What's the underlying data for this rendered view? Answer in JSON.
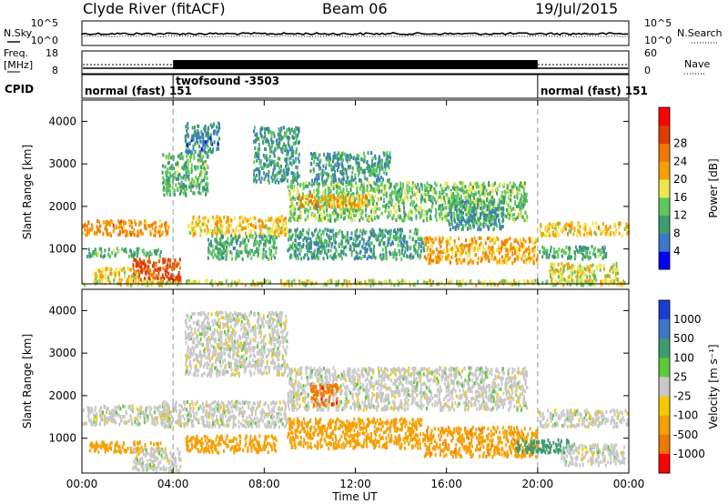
{
  "header": {
    "station": "Clyde River (fitACF)",
    "beam": "Beam 06",
    "date": "19/Jul/2015"
  },
  "top_panels": {
    "nsky_label": "N.Sky",
    "nsky_ticks": [
      "10^5",
      "10^0"
    ],
    "nsearch_label": "N.Search",
    "nsearch_ticks": [
      "10^5",
      "10^0"
    ],
    "freq_label_1": "Freq.",
    "freq_label_2": "[MHz]",
    "freq_ticks": [
      "18",
      "8"
    ],
    "nave_label": "Nave",
    "nave_ticks": [
      "60",
      "0"
    ],
    "cpid_label": "CPID"
  },
  "cpid_segments": [
    {
      "text": "normal (fast) 151",
      "start_h": 0,
      "end_h": 4
    },
    {
      "text": "twofsound -3503",
      "start_h": 4,
      "end_h": 20
    },
    {
      "text": "normal (fast) 151",
      "start_h": 20,
      "end_h": 24
    }
  ],
  "chart_data": [
    {
      "type": "heatmap",
      "panel": "power",
      "xlabel": "Time UT",
      "ylabel": "Slant Range [km]",
      "x_range_h": [
        0,
        24
      ],
      "xtick_labels": [
        "00:00",
        "04:00",
        "08:00",
        "12:00",
        "16:00",
        "20:00",
        "00:00"
      ],
      "ylim": [
        180,
        4500
      ],
      "yticks": [
        1000,
        2000,
        3000,
        4000
      ],
      "colorbar_label": "Power [dB]",
      "colorbar_ticks": [
        "4",
        "8",
        "12",
        "16",
        "20",
        "24",
        "28"
      ],
      "colorbar_colors": [
        "#0000ff",
        "#3c78c8",
        "#3e9b6e",
        "#5ec85e",
        "#f0e650",
        "#f5a000",
        "#f07800",
        "#e03c00",
        "#ff0000"
      ],
      "echo_regions": [
        {
          "t0": 0.0,
          "t1": 3.8,
          "r0": 1350,
          "r1": 1700,
          "level": 24
        },
        {
          "t0": 0.2,
          "t1": 3.5,
          "r0": 850,
          "r1": 1050,
          "level": 12
        },
        {
          "t0": 2.2,
          "t1": 4.3,
          "r0": 250,
          "r1": 800,
          "level": 30
        },
        {
          "t0": 0.5,
          "t1": 2.5,
          "r0": 300,
          "r1": 600,
          "level": 20
        },
        {
          "t0": 3.5,
          "t1": 5.5,
          "r0": 2300,
          "r1": 3300,
          "level": 12
        },
        {
          "t0": 4.5,
          "t1": 6.0,
          "r0": 3300,
          "r1": 4000,
          "level": 8
        },
        {
          "t0": 4.6,
          "t1": 9.0,
          "r0": 1350,
          "r1": 1800,
          "level": 20
        },
        {
          "t0": 5.5,
          "t1": 8.5,
          "r0": 800,
          "r1": 1350,
          "level": 12
        },
        {
          "t0": 7.5,
          "t1": 9.5,
          "r0": 2600,
          "r1": 3900,
          "level": 10
        },
        {
          "t0": 9.0,
          "t1": 19.5,
          "r0": 1700,
          "r1": 2600,
          "level": 14
        },
        {
          "t0": 9.5,
          "t1": 12.5,
          "r0": 2000,
          "r1": 2300,
          "level": 22
        },
        {
          "t0": 10.0,
          "t1": 13.5,
          "r0": 2600,
          "r1": 3300,
          "level": 10
        },
        {
          "t0": 9.0,
          "t1": 15.0,
          "r0": 800,
          "r1": 1500,
          "level": 10
        },
        {
          "t0": 15.0,
          "t1": 20.0,
          "r0": 700,
          "r1": 1300,
          "level": 22
        },
        {
          "t0": 16.0,
          "t1": 18.5,
          "r0": 1500,
          "r1": 2200,
          "level": 10
        },
        {
          "t0": 20.0,
          "t1": 24.0,
          "r0": 1350,
          "r1": 1650,
          "level": 20
        },
        {
          "t0": 20.0,
          "t1": 23.0,
          "r0": 800,
          "r1": 1100,
          "level": 12
        },
        {
          "t0": 20.5,
          "t1": 23.5,
          "r0": 250,
          "r1": 700,
          "level": 18
        },
        {
          "t0": 0.0,
          "t1": 24.0,
          "r0": 180,
          "r1": 300,
          "level": 18
        }
      ]
    },
    {
      "type": "heatmap",
      "panel": "velocity",
      "xlabel": "Time UT",
      "ylabel": "Slant Range [km]",
      "x_range_h": [
        0,
        24
      ],
      "xtick_labels": [
        "00:00",
        "04:00",
        "08:00",
        "12:00",
        "16:00",
        "20:00",
        "00:00"
      ],
      "ylim": [
        180,
        4500
      ],
      "yticks": [
        1000,
        2000,
        3000,
        4000
      ],
      "colorbar_label": "Velocity [m s⁻¹]",
      "colorbar_ticks": [
        "1000",
        "500",
        "100",
        "25",
        "-25",
        "-100",
        "-500",
        "-1000"
      ],
      "colorbar_colors": [
        "#1a3fd0",
        "#3c78c8",
        "#3e9b6e",
        "#5ec83c",
        "#c8c8c8",
        "#f5c800",
        "#f5a000",
        "#f07800",
        "#ff0000"
      ],
      "echo_regions": [
        {
          "t0": 0.0,
          "t1": 3.8,
          "r0": 1350,
          "r1": 1800,
          "level": 0
        },
        {
          "t0": 0.3,
          "t1": 3.5,
          "r0": 700,
          "r1": 950,
          "level": -150
        },
        {
          "t0": 2.2,
          "t1": 4.3,
          "r0": 250,
          "r1": 800,
          "level": 0
        },
        {
          "t0": 3.5,
          "t1": 9.0,
          "r0": 1300,
          "r1": 1900,
          "level": 0
        },
        {
          "t0": 4.5,
          "t1": 8.5,
          "r0": 700,
          "r1": 1100,
          "level": -150
        },
        {
          "t0": 4.5,
          "t1": 9.0,
          "r0": 2500,
          "r1": 4000,
          "level": 0
        },
        {
          "t0": 9.0,
          "t1": 19.5,
          "r0": 1700,
          "r1": 2700,
          "level": 0
        },
        {
          "t0": 10.0,
          "t1": 11.2,
          "r0": 1800,
          "r1": 2300,
          "level": -800
        },
        {
          "t0": 9.0,
          "t1": 15.0,
          "r0": 800,
          "r1": 1500,
          "level": -150
        },
        {
          "t0": 15.0,
          "t1": 20.0,
          "r0": 600,
          "r1": 1300,
          "level": -400
        },
        {
          "t0": 19.0,
          "t1": 21.5,
          "r0": 700,
          "r1": 1000,
          "level": 150
        },
        {
          "t0": 20.0,
          "t1": 24.0,
          "r0": 1300,
          "r1": 1700,
          "level": 0
        },
        {
          "t0": 21.0,
          "t1": 23.8,
          "r0": 400,
          "r1": 900,
          "level": 0
        }
      ]
    }
  ]
}
